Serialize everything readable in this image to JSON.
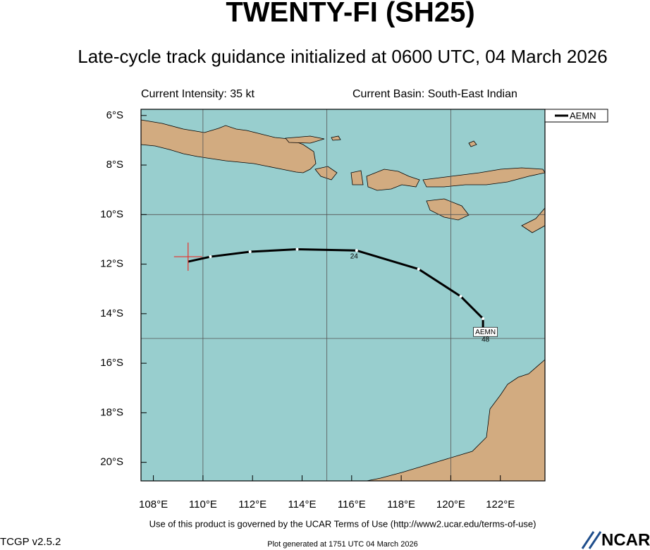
{
  "chart_data": {
    "type": "track",
    "title": "TWENTY-FI (SH25)",
    "subtitle": "Late-cycle track guidance initialized at 0600 UTC, 04 March 2026",
    "intensity": "Current Intensity: 35 kt",
    "basin": "Current Basin: South-East Indian",
    "xlim": [
      107.5,
      123.8
    ],
    "ylim": [
      -20.75,
      -5.75
    ],
    "xticks": [
      {
        "value": 108,
        "label": "108°E"
      },
      {
        "value": 110,
        "label": "110°E"
      },
      {
        "value": 112,
        "label": "112°E"
      },
      {
        "value": 114,
        "label": "114°E"
      },
      {
        "value": 116,
        "label": "116°E"
      },
      {
        "value": 118,
        "label": "118°E"
      },
      {
        "value": 120,
        "label": "120°E"
      },
      {
        "value": 122,
        "label": "122°E"
      }
    ],
    "yticks": [
      {
        "value": -6,
        "label": "6°S"
      },
      {
        "value": -8,
        "label": "8°S"
      },
      {
        "value": -10,
        "label": "10°S"
      },
      {
        "value": -12,
        "label": "12°S"
      },
      {
        "value": -14,
        "label": "14°S"
      },
      {
        "value": -16,
        "label": "16°S"
      },
      {
        "value": -18,
        "label": "18°S"
      },
      {
        "value": -20,
        "label": "20°S"
      }
    ],
    "grid_lon": [
      110,
      115,
      120
    ],
    "grid_lat": [
      -10,
      -15
    ],
    "current_position": {
      "lon": 109.4,
      "lat": -11.7,
      "color": "#e8302a"
    },
    "series": [
      {
        "name": "AEMN",
        "color": "#000000",
        "lon": [
          109.4,
          110.3,
          111.9,
          113.8,
          116.2,
          118.7,
          120.4,
          121.3,
          121.3
        ],
        "lat": [
          -11.9,
          -11.7,
          -11.5,
          -11.4,
          -11.45,
          -12.2,
          -13.3,
          -14.2,
          -14.7
        ]
      }
    ],
    "point_labels": [
      {
        "text": "24",
        "lon": 116.1,
        "lat": -11.7
      },
      {
        "text": "AEMN",
        "lon": 121.4,
        "lat": -14.75
      },
      {
        "text": "48",
        "lon": 121.4,
        "lat": -15.05
      }
    ],
    "legend": "upper right",
    "footer": {
      "terms": "Use of this product is governed by the UCAR Terms of Use (http://www2.ucar.edu/terms-of-use)",
      "version": "TCGP v2.5.2",
      "generated": "Plot generated at 1751 UTC   04 March 2026",
      "logo": "NCAR"
    }
  }
}
